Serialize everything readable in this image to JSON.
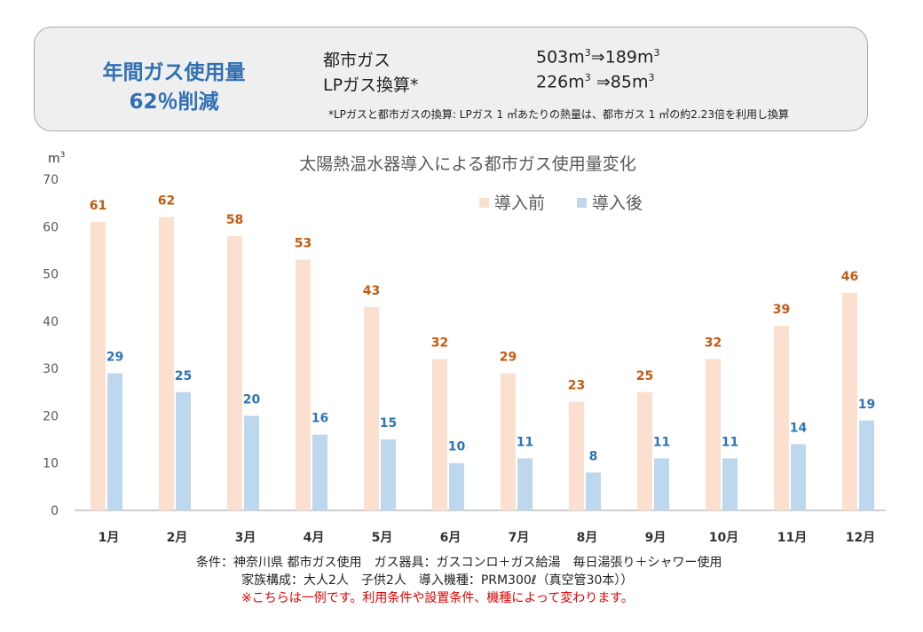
{
  "summary": {
    "headline_line1": "年間ガス使用量",
    "headline_line2": "62％削減",
    "city_gas_label": "都市ガス",
    "city_gas_before": "503",
    "city_gas_after": "189",
    "lp_gas_label": "LPガス換算*",
    "lp_gas_before": "226",
    "lp_gas_after": "85",
    "unit": "m",
    "unit_sup": "3",
    "arrow": "⇒",
    "footnote": "*LPガスと都市ガスの換算: LPガス 1 ㎥あたりの熱量は、都市ガス 1 ㎥の約2.23倍を利用し換算"
  },
  "chart_data": {
    "type": "bar",
    "title": "太陽熱温水器導入による都市ガス使用量変化",
    "ylabel": "m",
    "ylabel_sup": "3",
    "xlabel": "",
    "ylim": [
      0,
      70
    ],
    "yticks": [
      0,
      10,
      20,
      30,
      40,
      50,
      60,
      70
    ],
    "categories": [
      "1月",
      "2月",
      "3月",
      "4月",
      "5月",
      "6月",
      "7月",
      "8月",
      "9月",
      "10月",
      "11月",
      "12月"
    ],
    "series": [
      {
        "name": "導入前",
        "color": "#fbe0d0",
        "label_color": "#c55a11",
        "values": [
          61,
          62,
          58,
          53,
          43,
          32,
          29,
          23,
          25,
          32,
          39,
          46
        ]
      },
      {
        "name": "導入後",
        "color": "#bdd7ee",
        "label_color": "#2e75b6",
        "values": [
          29,
          25,
          20,
          16,
          15,
          10,
          11,
          8,
          11,
          11,
          14,
          19
        ]
      }
    ],
    "legend_position": "top-right",
    "grid": false
  },
  "conditions": {
    "line1": "条件：神奈川県 都市ガス使用　ガス器具：ガスコンロ＋ガス給湯　毎日湯張り＋シャワー使用",
    "line2": "家族構成：大人2人　子供2人　導入機種：PRM300ℓ（真空管30本））",
    "note": "※こちらは一例です。利用条件や設置条件、機種によって変わります。"
  }
}
